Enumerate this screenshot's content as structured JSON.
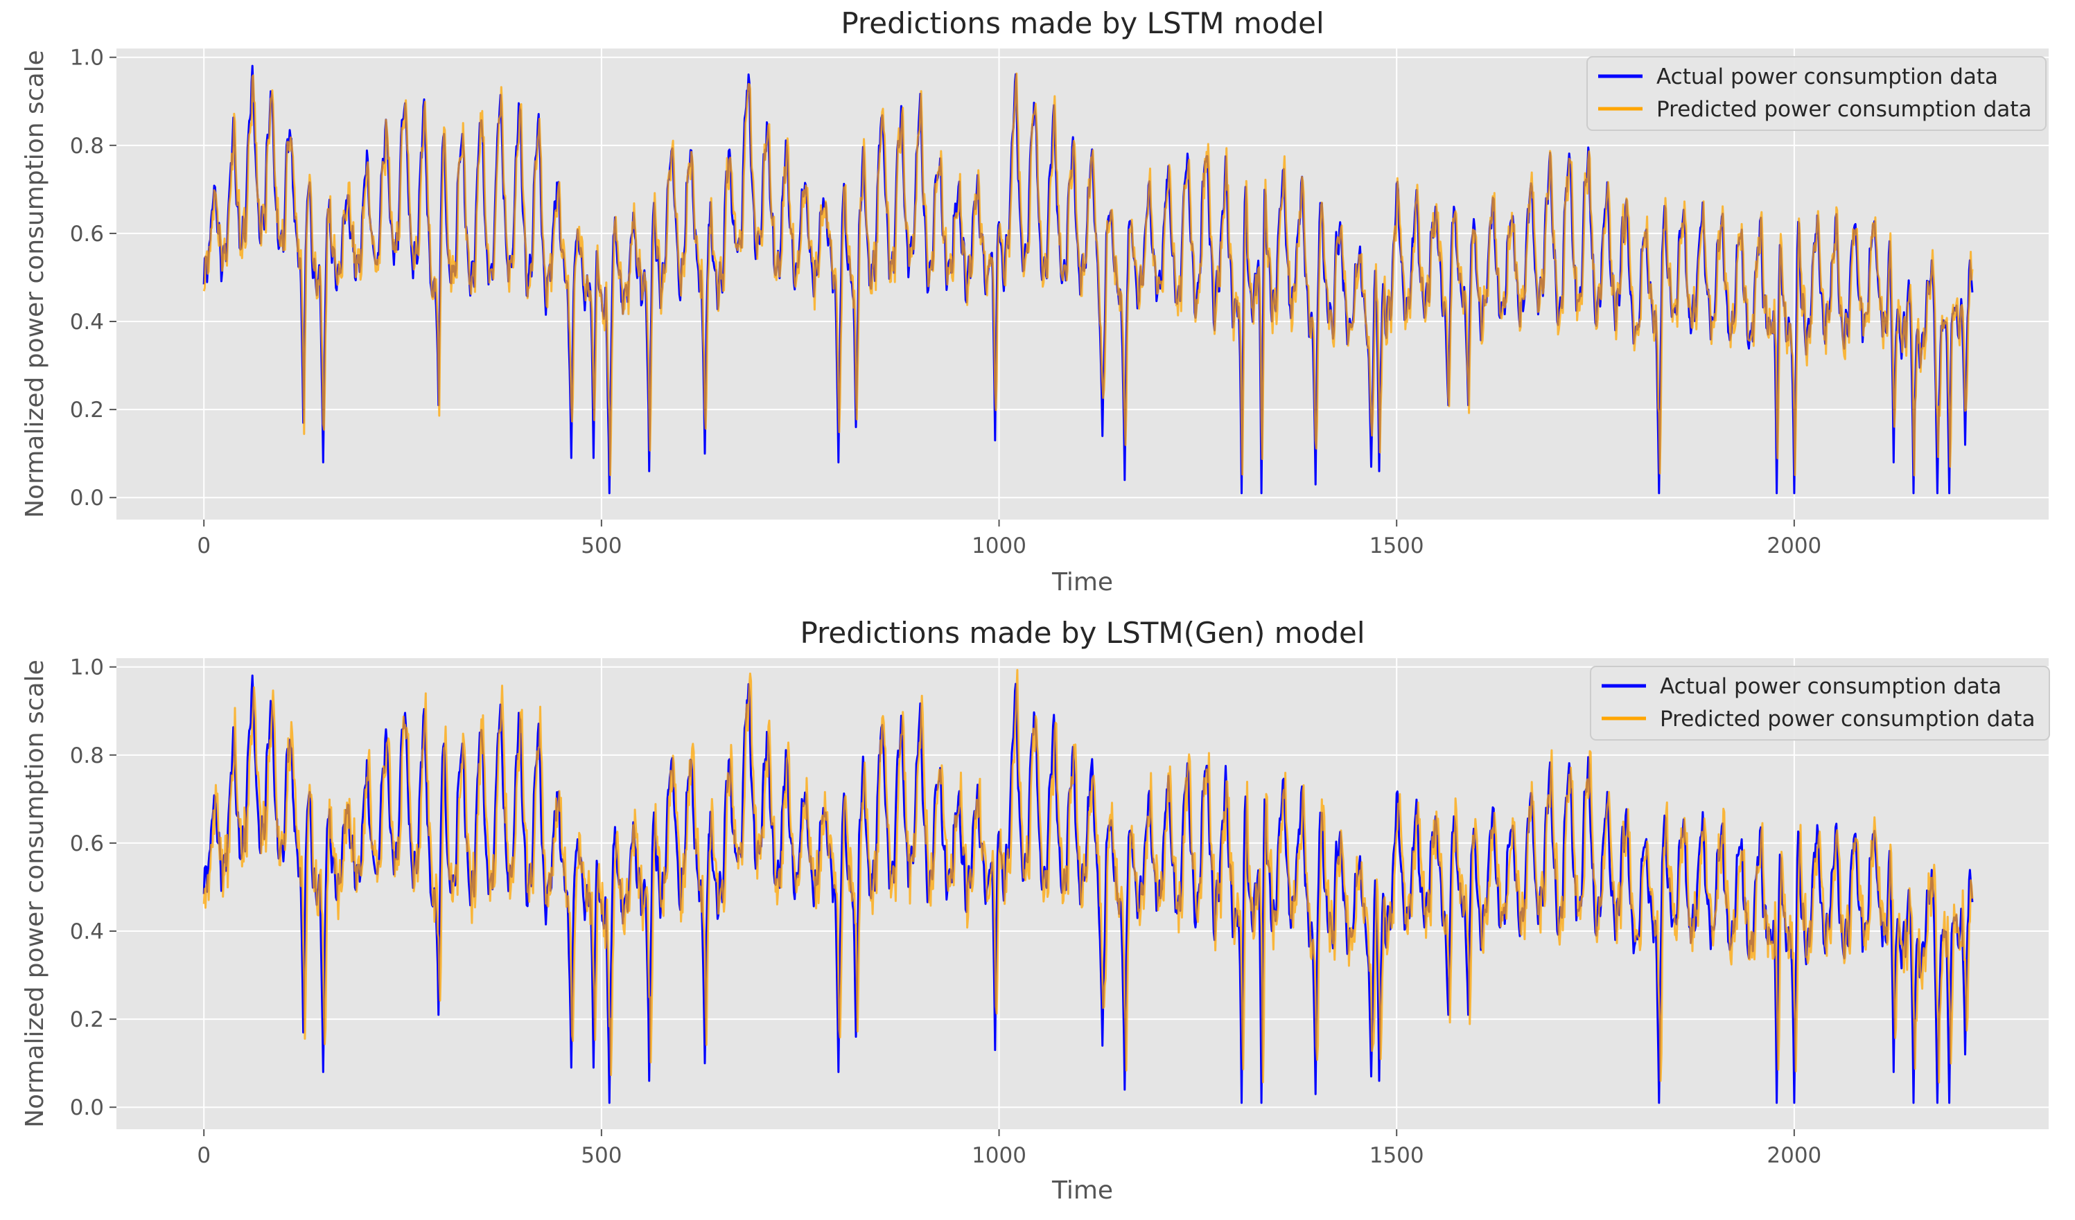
{
  "colors": {
    "background": "#ffffff",
    "plot_bg": "#e5e5e5",
    "grid": "#ffffff",
    "actual": "#0000ff",
    "predicted": "#ffa500",
    "text": "#555555"
  },
  "chart_data": [
    {
      "type": "line",
      "title": "Predictions made by LSTM model",
      "xlabel": "Time",
      "ylabel": "Normalized power consumption scale",
      "xlim": [
        -110,
        2320
      ],
      "ylim": [
        -0.05,
        1.02
      ],
      "xticks": [
        0,
        500,
        1000,
        1500,
        2000
      ],
      "xtick_labels": [
        "0",
        "500",
        "1000",
        "1500",
        "2000"
      ],
      "yticks": [
        0.0,
        0.2,
        0.4,
        0.6,
        0.8,
        1.0
      ],
      "ytick_labels": [
        "0.0",
        "0.2",
        "0.4",
        "0.6",
        "0.8",
        "1.0"
      ],
      "grid": true,
      "legend_position": "top-right",
      "n_points": 2225,
      "series": [
        {
          "name": "Actual power consumption data",
          "color": "#0000ff",
          "seed": 11,
          "offset": 0,
          "noise": 0
        },
        {
          "name": "Predicted power consumption data",
          "color": "#ffa500",
          "seed": 23,
          "offset": 1,
          "noise": 0.03
        }
      ],
      "envelope_anchors": {
        "x": [
          0,
          60,
          100,
          140,
          180,
          250,
          300,
          380,
          420,
          460,
          510,
          560,
          600,
          640,
          680,
          700,
          760,
          800,
          850,
          900,
          950,
          1000,
          1020,
          1100,
          1160,
          1250,
          1300,
          1350,
          1400,
          1470,
          1500,
          1550,
          1600,
          1650,
          1700,
          1740,
          1800,
          1840,
          1880,
          1940,
          1990,
          2040,
          2100,
          2160,
          2222
        ],
        "peak": [
          0.6,
          0.96,
          0.87,
          0.63,
          0.68,
          0.9,
          0.82,
          0.89,
          0.85,
          0.6,
          0.58,
          0.62,
          0.85,
          0.62,
          0.97,
          0.85,
          0.72,
          0.63,
          0.86,
          0.88,
          0.68,
          0.68,
          0.92,
          0.8,
          0.62,
          0.8,
          0.7,
          0.74,
          0.66,
          0.52,
          0.7,
          0.65,
          0.63,
          0.65,
          0.78,
          0.78,
          0.6,
          0.64,
          0.65,
          0.6,
          0.6,
          0.6,
          0.63,
          0.47,
          0.5
        ],
        "base": [
          0.5,
          0.6,
          0.58,
          0.5,
          0.52,
          0.55,
          0.47,
          0.52,
          0.5,
          0.47,
          0.45,
          0.48,
          0.52,
          0.48,
          0.58,
          0.55,
          0.5,
          0.47,
          0.52,
          0.55,
          0.5,
          0.52,
          0.56,
          0.5,
          0.45,
          0.47,
          0.43,
          0.45,
          0.42,
          0.38,
          0.42,
          0.44,
          0.43,
          0.42,
          0.45,
          0.45,
          0.4,
          0.4,
          0.4,
          0.38,
          0.38,
          0.38,
          0.4,
          0.35,
          0.45
        ]
      },
      "dips": [
        {
          "x": 125,
          "y": 0.17
        },
        {
          "x": 150,
          "y": 0.08
        },
        {
          "x": 295,
          "y": 0.21
        },
        {
          "x": 462,
          "y": 0.09
        },
        {
          "x": 490,
          "y": 0.09
        },
        {
          "x": 510,
          "y": 0.01
        },
        {
          "x": 560,
          "y": 0.06
        },
        {
          "x": 630,
          "y": 0.1
        },
        {
          "x": 798,
          "y": 0.08
        },
        {
          "x": 820,
          "y": 0.16
        },
        {
          "x": 995,
          "y": 0.13
        },
        {
          "x": 1130,
          "y": 0.14
        },
        {
          "x": 1158,
          "y": 0.04
        },
        {
          "x": 1305,
          "y": 0.01
        },
        {
          "x": 1330,
          "y": 0.01
        },
        {
          "x": 1398,
          "y": 0.03
        },
        {
          "x": 1468,
          "y": 0.07
        },
        {
          "x": 1478,
          "y": 0.06
        },
        {
          "x": 1565,
          "y": 0.21
        },
        {
          "x": 1590,
          "y": 0.21
        },
        {
          "x": 1830,
          "y": 0.01
        },
        {
          "x": 1978,
          "y": 0.01
        },
        {
          "x": 2000,
          "y": 0.01
        },
        {
          "x": 2125,
          "y": 0.08
        },
        {
          "x": 2150,
          "y": 0.01
        },
        {
          "x": 2180,
          "y": 0.01
        },
        {
          "x": 2195,
          "y": 0.01
        },
        {
          "x": 2215,
          "y": 0.12
        }
      ]
    },
    {
      "type": "line",
      "title": "Predictions made by LSTM(Gen) model",
      "xlabel": "Time",
      "ylabel": "Normalized power consumption scale",
      "xlim": [
        -110,
        2320
      ],
      "ylim": [
        -0.05,
        1.02
      ],
      "xticks": [
        0,
        500,
        1000,
        1500,
        2000
      ],
      "xtick_labels": [
        "0",
        "500",
        "1000",
        "1500",
        "2000"
      ],
      "yticks": [
        0.0,
        0.2,
        0.4,
        0.6,
        0.8,
        1.0
      ],
      "ytick_labels": [
        "0.0",
        "0.2",
        "0.4",
        "0.6",
        "0.8",
        "1.0"
      ],
      "grid": true,
      "legend_position": "top-right",
      "n_points": 2225,
      "series": [
        {
          "name": "Actual power consumption data",
          "color": "#0000ff",
          "seed": 11,
          "offset": 0,
          "noise": 0
        },
        {
          "name": "Predicted power consumption data",
          "color": "#ffa500",
          "seed": 37,
          "offset": 2,
          "noise": 0.045
        }
      ],
      "envelope_anchors": {
        "x": [
          0,
          60,
          100,
          140,
          180,
          250,
          300,
          380,
          420,
          460,
          510,
          560,
          600,
          640,
          680,
          700,
          760,
          800,
          850,
          900,
          950,
          1000,
          1020,
          1100,
          1160,
          1250,
          1300,
          1350,
          1400,
          1470,
          1500,
          1550,
          1600,
          1650,
          1700,
          1740,
          1800,
          1840,
          1880,
          1940,
          1990,
          2040,
          2100,
          2160,
          2222
        ],
        "peak": [
          0.6,
          0.96,
          0.87,
          0.63,
          0.68,
          0.9,
          0.82,
          0.89,
          0.85,
          0.6,
          0.58,
          0.62,
          0.85,
          0.62,
          0.97,
          0.85,
          0.72,
          0.63,
          0.86,
          0.88,
          0.68,
          0.68,
          0.92,
          0.8,
          0.62,
          0.8,
          0.7,
          0.74,
          0.66,
          0.52,
          0.7,
          0.65,
          0.63,
          0.65,
          0.78,
          0.78,
          0.6,
          0.64,
          0.65,
          0.6,
          0.6,
          0.6,
          0.63,
          0.47,
          0.5
        ],
        "base": [
          0.5,
          0.6,
          0.58,
          0.5,
          0.52,
          0.55,
          0.47,
          0.52,
          0.5,
          0.47,
          0.45,
          0.48,
          0.52,
          0.48,
          0.58,
          0.55,
          0.5,
          0.47,
          0.52,
          0.55,
          0.5,
          0.52,
          0.56,
          0.5,
          0.45,
          0.47,
          0.43,
          0.45,
          0.42,
          0.38,
          0.42,
          0.44,
          0.43,
          0.42,
          0.45,
          0.45,
          0.4,
          0.4,
          0.4,
          0.38,
          0.38,
          0.38,
          0.4,
          0.35,
          0.45
        ]
      },
      "dips": [
        {
          "x": 125,
          "y": 0.17
        },
        {
          "x": 150,
          "y": 0.08
        },
        {
          "x": 295,
          "y": 0.21
        },
        {
          "x": 462,
          "y": 0.09
        },
        {
          "x": 490,
          "y": 0.09
        },
        {
          "x": 510,
          "y": 0.01
        },
        {
          "x": 560,
          "y": 0.06
        },
        {
          "x": 630,
          "y": 0.1
        },
        {
          "x": 798,
          "y": 0.08
        },
        {
          "x": 820,
          "y": 0.16
        },
        {
          "x": 995,
          "y": 0.13
        },
        {
          "x": 1130,
          "y": 0.14
        },
        {
          "x": 1158,
          "y": 0.04
        },
        {
          "x": 1305,
          "y": 0.01
        },
        {
          "x": 1330,
          "y": 0.01
        },
        {
          "x": 1398,
          "y": 0.03
        },
        {
          "x": 1468,
          "y": 0.07
        },
        {
          "x": 1478,
          "y": 0.06
        },
        {
          "x": 1565,
          "y": 0.21
        },
        {
          "x": 1590,
          "y": 0.21
        },
        {
          "x": 1830,
          "y": 0.01
        },
        {
          "x": 1978,
          "y": 0.01
        },
        {
          "x": 2000,
          "y": 0.01
        },
        {
          "x": 2125,
          "y": 0.08
        },
        {
          "x": 2150,
          "y": 0.01
        },
        {
          "x": 2180,
          "y": 0.01
        },
        {
          "x": 2195,
          "y": 0.01
        },
        {
          "x": 2215,
          "y": 0.12
        }
      ]
    }
  ]
}
